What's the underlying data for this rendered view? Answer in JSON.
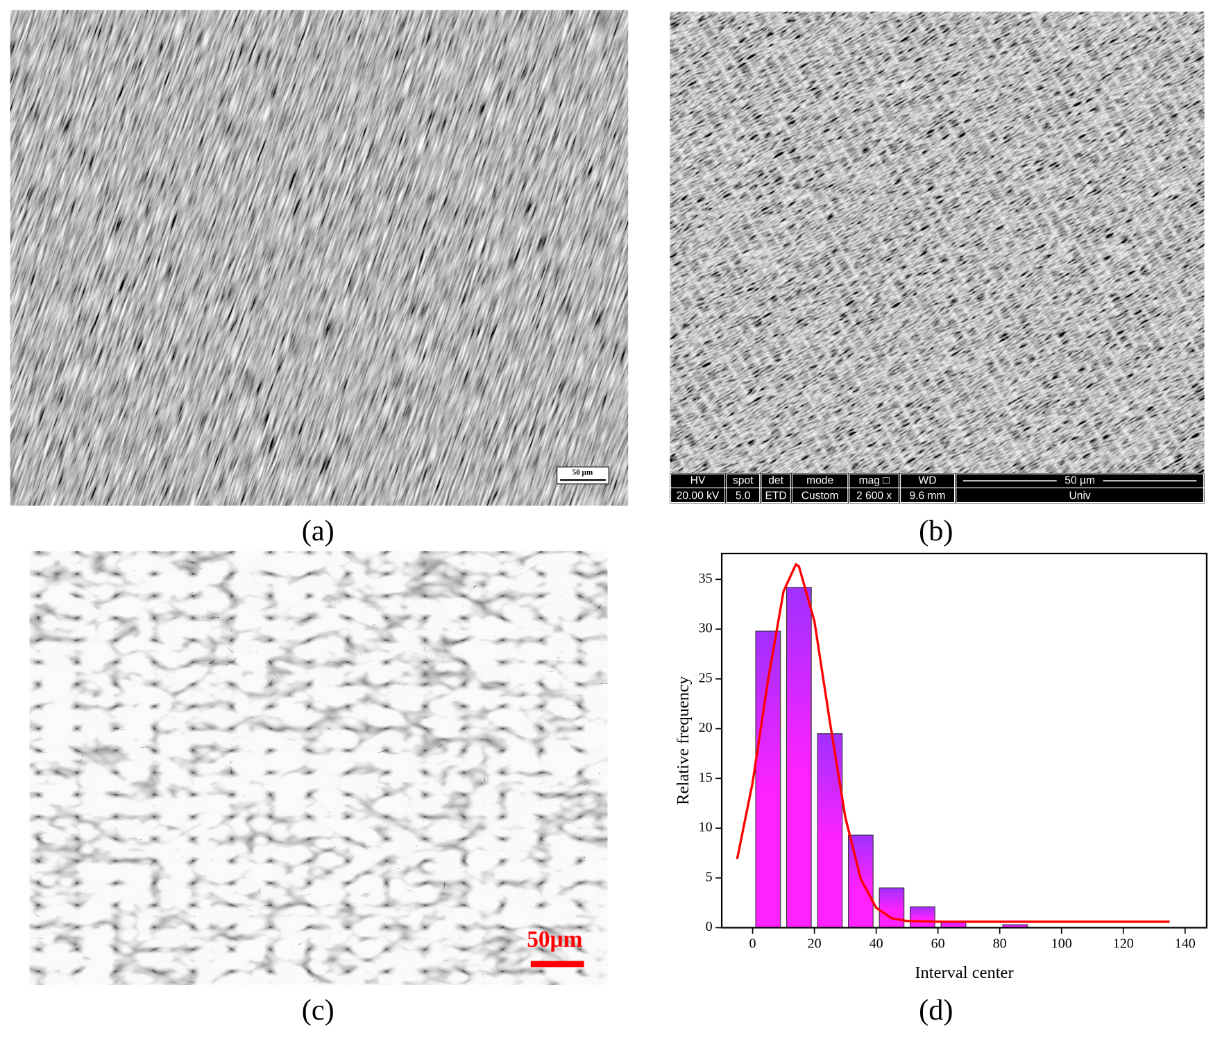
{
  "panels": {
    "a": {
      "label": "(a)",
      "scale": "50 µm"
    },
    "b": {
      "label": "(b)",
      "info_headers": [
        "HV",
        "spot",
        "det",
        "mode",
        "mag □",
        "WD",
        "50 µm"
      ],
      "info_values": [
        "20.00 kV",
        "5.0",
        "ETD",
        "Custom",
        "2 600 x",
        "9.6 mm",
        "Univ"
      ]
    },
    "c": {
      "label": "(c)",
      "scale": "50μm"
    },
    "d": {
      "label": "(d)"
    }
  },
  "chart_data": {
    "type": "histogram",
    "x_label": "Interval center",
    "y_label": "Relative frequency",
    "bins": [
      0,
      10,
      20,
      30,
      40,
      50,
      60,
      70,
      80,
      90
    ],
    "values": [
      29.8,
      34.2,
      19.5,
      9.3,
      4.0,
      2.1,
      0.6,
      0,
      0.3
    ],
    "color": "#ff22ff",
    "gradient_color": "#a030ff",
    "fit": {
      "type": "line",
      "color": "#ff0000",
      "x": [
        -5,
        0,
        5,
        10,
        14,
        15,
        20,
        25,
        30,
        35,
        40,
        45,
        50,
        60,
        80,
        100,
        120,
        135
      ],
      "values": [
        6.9,
        14.6,
        24.9,
        33.8,
        36.5,
        36.3,
        30.8,
        20.7,
        11.1,
        4.9,
        2.0,
        0.95,
        0.67,
        0.6,
        0.6,
        0.6,
        0.6,
        0.6
      ]
    },
    "xlim": [
      -10,
      147
    ],
    "ylim": [
      0,
      37.6
    ],
    "xticks": [
      0,
      20,
      40,
      60,
      80,
      100,
      120,
      140
    ],
    "yticks": [
      0,
      5,
      10,
      15,
      20,
      25,
      30,
      35
    ]
  }
}
